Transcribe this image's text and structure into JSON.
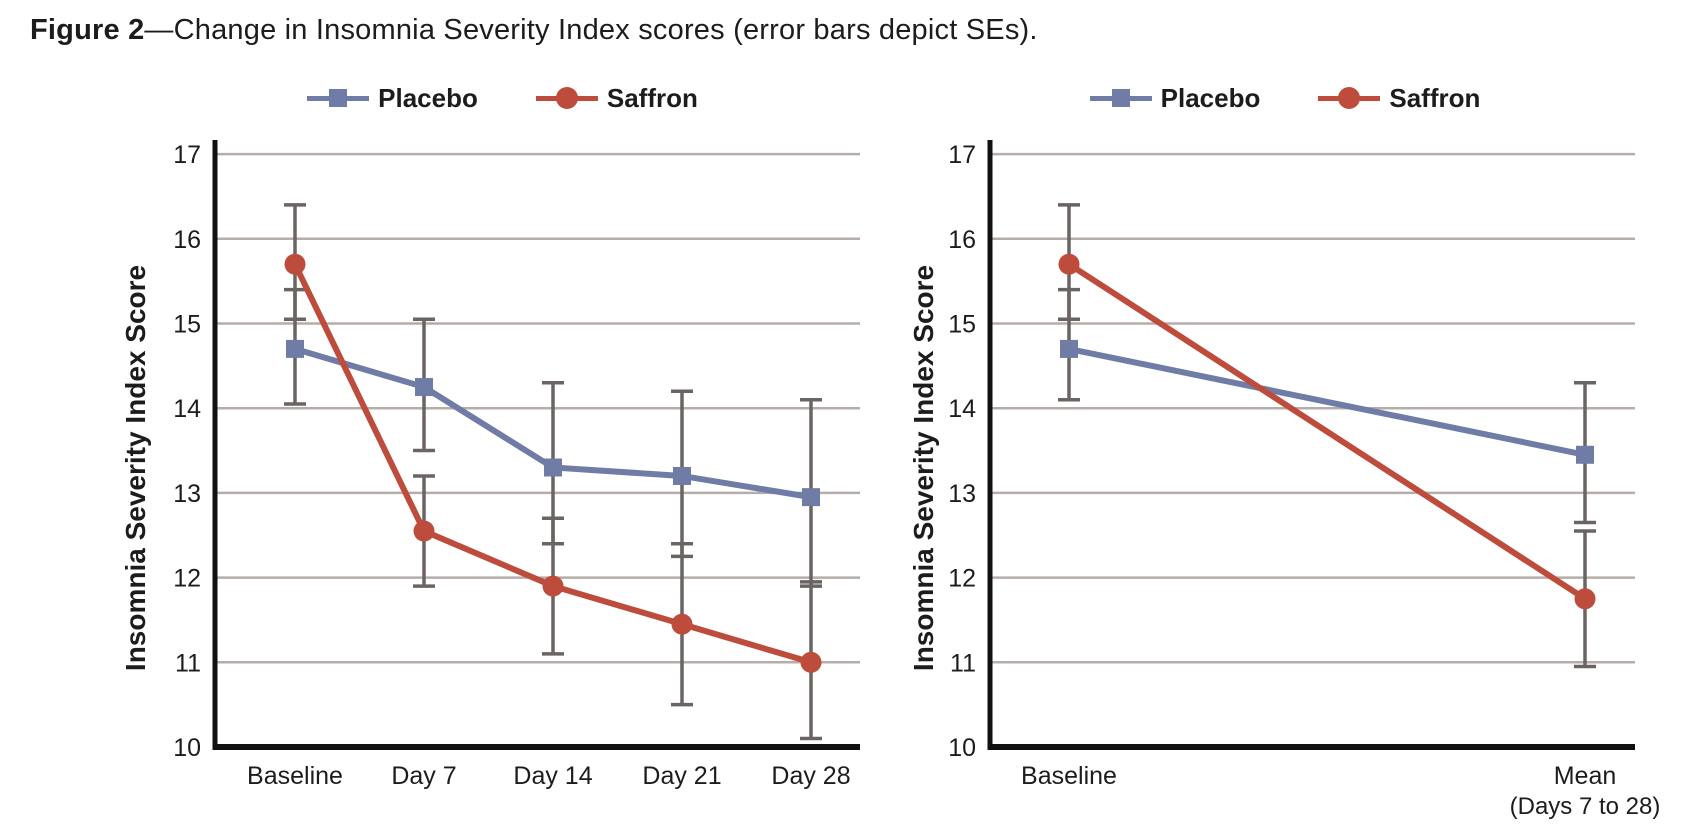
{
  "caption": {
    "label": "Figure 2",
    "text": "—Change in Insomnia Severity Index scores (error bars depict SEs)."
  },
  "legend": {
    "items": [
      {
        "name": "Placebo",
        "marker": "square",
        "color_key": "placebo"
      },
      {
        "name": "Saffron",
        "marker": "circle",
        "color_key": "saffron"
      }
    ]
  },
  "colors": {
    "placebo": "#6f7ca6",
    "saffron": "#bd4c3c",
    "grid": "#b5adaa",
    "error_bar": "#6a6563",
    "axis": "#111111",
    "text": "#1c1c1c"
  },
  "chart_data": [
    {
      "type": "line",
      "panel": "left",
      "title": "",
      "xlabel": "",
      "ylabel": "Insomnia Severity Index Score",
      "ylim": [
        10,
        17.3
      ],
      "yticks": [
        17,
        16,
        15,
        14,
        13,
        12,
        11,
        10
      ],
      "grid": true,
      "legend_position": "top-center",
      "error_bars": "SE",
      "categories": [
        "Baseline",
        "Day 7",
        "Day 14",
        "Day 21",
        "Day 28"
      ],
      "series": [
        {
          "name": "Placebo",
          "color_key": "placebo",
          "marker": "square",
          "values": [
            14.7,
            14.25,
            13.3,
            13.2,
            12.95
          ],
          "err_hi": [
            15.4,
            15.05,
            14.3,
            14.2,
            14.1
          ],
          "err_lo": [
            14.05,
            13.5,
            12.4,
            12.25,
            11.9
          ]
        },
        {
          "name": "Saffron",
          "color_key": "saffron",
          "marker": "circle",
          "values": [
            15.7,
            12.55,
            11.9,
            11.45,
            11.0
          ],
          "err_hi": [
            16.4,
            13.2,
            12.7,
            12.4,
            11.95
          ],
          "err_lo": [
            15.05,
            11.9,
            11.1,
            10.5,
            10.1
          ]
        }
      ]
    },
    {
      "type": "line",
      "panel": "right",
      "title": "",
      "xlabel": "",
      "ylabel": "Insomnia Severity Index Score",
      "ylim": [
        10,
        17.3
      ],
      "yticks": [
        17,
        16,
        15,
        14,
        13,
        12,
        11,
        10
      ],
      "grid": true,
      "legend_position": "top-center",
      "error_bars": "SE",
      "categories": [
        "Baseline",
        "Mean"
      ],
      "category_sublabels": [
        "",
        "(Days 7 to 28)"
      ],
      "series": [
        {
          "name": "Placebo",
          "color_key": "placebo",
          "marker": "square",
          "values": [
            14.7,
            13.45
          ],
          "err_hi": [
            15.4,
            14.3
          ],
          "err_lo": [
            14.1,
            12.65
          ]
        },
        {
          "name": "Saffron",
          "color_key": "saffron",
          "marker": "circle",
          "values": [
            15.7,
            11.75
          ],
          "err_hi": [
            16.4,
            12.55
          ],
          "err_lo": [
            15.05,
            10.95
          ]
        }
      ]
    }
  ]
}
